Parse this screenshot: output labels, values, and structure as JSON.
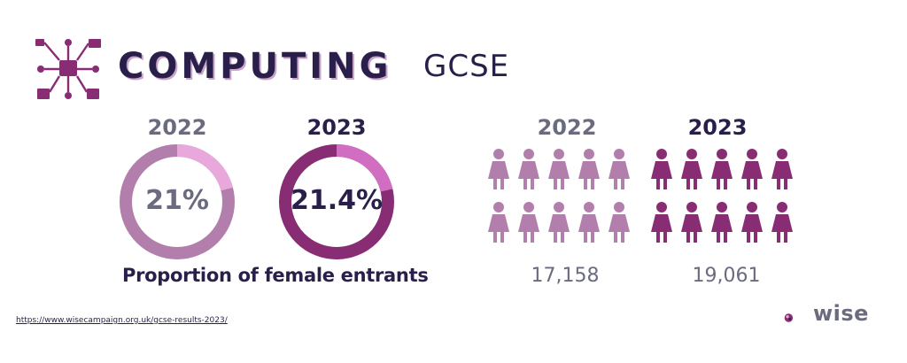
{
  "header": {
    "title_main": "COMPUTING",
    "title_sub": "GCSE",
    "logo_icon": "circuit-chip-icon"
  },
  "chart_data": [
    {
      "type": "pie",
      "title": "",
      "categories": [
        "2022",
        "2023"
      ],
      "values": [
        21,
        21.4
      ],
      "value_labels": [
        "21%",
        "21.4%"
      ],
      "caption": "Proportion of female entrants",
      "colors": {
        "2022": {
          "ring": "#b27fac",
          "highlight": "#e8a8dc"
        },
        "2023": {
          "ring": "#882d74",
          "highlight": "#d26ec2"
        }
      }
    },
    {
      "type": "bar",
      "title": "",
      "categories": [
        "2022",
        "2023"
      ],
      "values": [
        17158,
        19061
      ],
      "value_labels": [
        "17,158",
        "19,061"
      ],
      "icon": "female-person-icon",
      "colors": {
        "2022": "#b27fac",
        "2023": "#882d74"
      }
    }
  ],
  "footer": {
    "source_url": "https://www.wisecampaign.org.uk/gcse-results-2023/",
    "brand": "wise"
  }
}
